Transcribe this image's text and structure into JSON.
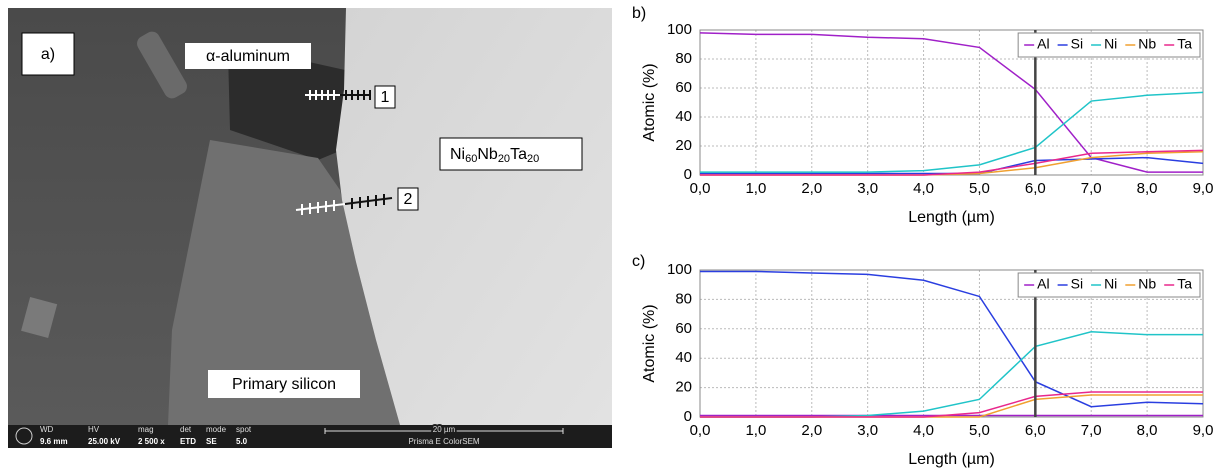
{
  "panel_a": {
    "label": "a)",
    "phase_1": "α-aluminum",
    "phase_2": "Primary silicon",
    "phase_3": {
      "parts": [
        "Ni",
        "60",
        "Nb",
        "20",
        "Ta",
        "20"
      ]
    },
    "line_1": "1",
    "line_2": "2",
    "info_bar": {
      "wd_label": "WD",
      "wd": "9.6 mm",
      "hv_label": "HV",
      "hv": "25.00 kV",
      "mag_label": "mag",
      "mag": "2 500 x",
      "det_label": "det",
      "det": "ETD",
      "mode_label": "mode",
      "mode": "SE",
      "spot_label": "spot",
      "spot": "5.0",
      "scale": "20 µm",
      "instrument": "Prisma E ColorSEM"
    }
  },
  "charts": [
    {
      "type": "line",
      "panel_label": "b)",
      "xlabel": "Length (µm)",
      "ylabel": "Atomic (%)",
      "xlim": [
        0,
        9
      ],
      "ylim": [
        0,
        100
      ],
      "xticks": [
        {
          "value": 0,
          "label": "0,0"
        },
        {
          "value": 1,
          "label": "1,0"
        },
        {
          "value": 2,
          "label": "2,0"
        },
        {
          "value": 3,
          "label": "3,0"
        },
        {
          "value": 4,
          "label": "4,0"
        },
        {
          "value": 5,
          "label": "5,0"
        },
        {
          "value": 6,
          "label": "6,0"
        },
        {
          "value": 7,
          "label": "7,0"
        },
        {
          "value": 8,
          "label": "8,0"
        },
        {
          "value": 9,
          "label": "9,0"
        }
      ],
      "yticks": [
        0,
        20,
        40,
        60,
        80,
        100
      ],
      "grid": true,
      "legend": "upper right",
      "vline": 6,
      "x": [
        0,
        1,
        2,
        3,
        4,
        5,
        6,
        7,
        8,
        9
      ],
      "series": [
        {
          "name": "Al",
          "color": "#a020c8",
          "values": [
            98,
            97,
            97,
            95,
            94,
            88,
            59,
            12,
            2,
            2
          ]
        },
        {
          "name": "Si",
          "color": "#2a3ee0",
          "values": [
            1,
            1,
            1,
            1,
            1,
            1,
            10,
            11,
            12,
            8
          ]
        },
        {
          "name": "Ni",
          "color": "#20c4c8",
          "values": [
            2,
            2,
            2,
            2,
            3,
            7,
            19,
            51,
            55,
            57
          ]
        },
        {
          "name": "Nb",
          "color": "#f0a030",
          "values": [
            0,
            0,
            0,
            0,
            0,
            1,
            5,
            12,
            15,
            16
          ]
        },
        {
          "name": "Ta",
          "color": "#e8288c",
          "values": [
            0,
            0,
            0,
            0,
            0,
            2,
            8,
            15,
            16,
            17
          ]
        }
      ]
    },
    {
      "type": "line",
      "panel_label": "c)",
      "xlabel": "Length (µm)",
      "ylabel": "Atomic (%)",
      "xlim": [
        0,
        9
      ],
      "ylim": [
        0,
        100
      ],
      "xticks": [
        {
          "value": 0,
          "label": "0,0"
        },
        {
          "value": 1,
          "label": "1,0"
        },
        {
          "value": 2,
          "label": "2,0"
        },
        {
          "value": 3,
          "label": "3,0"
        },
        {
          "value": 4,
          "label": "4,0"
        },
        {
          "value": 5,
          "label": "5,0"
        },
        {
          "value": 6,
          "label": "6,0"
        },
        {
          "value": 7,
          "label": "7,0"
        },
        {
          "value": 8,
          "label": "8,0"
        },
        {
          "value": 9,
          "label": "9,0"
        }
      ],
      "yticks": [
        0,
        20,
        40,
        60,
        80,
        100
      ],
      "grid": true,
      "legend": "upper right",
      "vline": 6,
      "x": [
        0,
        1,
        2,
        3,
        4,
        5,
        6,
        7,
        8,
        9
      ],
      "series": [
        {
          "name": "Al",
          "color": "#a020c8",
          "values": [
            1,
            1,
            1,
            1,
            1,
            1,
            1,
            1,
            1,
            1
          ]
        },
        {
          "name": "Si",
          "color": "#2a3ee0",
          "values": [
            99,
            99,
            98,
            97,
            93,
            82,
            24,
            7,
            10,
            9
          ]
        },
        {
          "name": "Ni",
          "color": "#20c4c8",
          "values": [
            0,
            0,
            0,
            1,
            4,
            12,
            48,
            58,
            56,
            56
          ]
        },
        {
          "name": "Nb",
          "color": "#f0a030",
          "values": [
            0,
            0,
            0,
            0,
            0,
            0,
            12,
            15,
            15,
            15
          ]
        },
        {
          "name": "Ta",
          "color": "#e8288c",
          "values": [
            0,
            0,
            0,
            0,
            0,
            3,
            14,
            17,
            17,
            17
          ]
        }
      ]
    }
  ]
}
